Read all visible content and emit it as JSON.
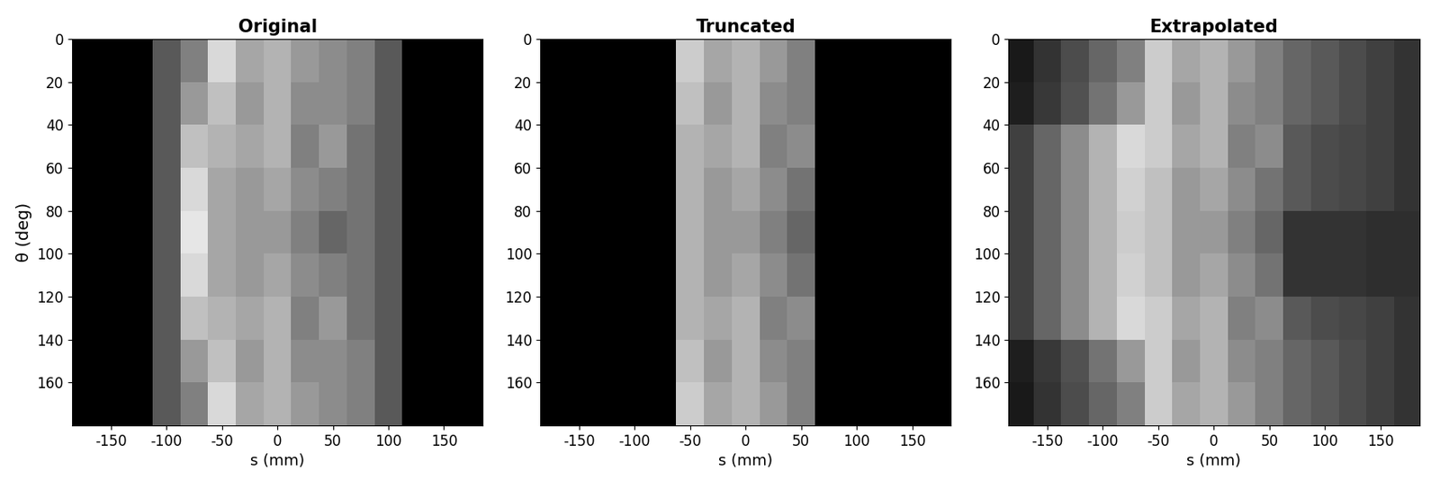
{
  "chart_data": [
    {
      "type": "heatmap",
      "title": "Original",
      "xlabel": "s (mm)",
      "ylabel": "θ (deg)",
      "color": "gray",
      "color_range": [
        0,
        1
      ],
      "xlim": [
        -185,
        185
      ],
      "ylim": [
        180,
        0
      ],
      "xticks": [
        -150,
        -100,
        -50,
        0,
        50,
        100,
        150
      ],
      "yticks": [
        0,
        20,
        40,
        60,
        80,
        100,
        120,
        140,
        160
      ],
      "x": [
        -175,
        -150,
        -125,
        -100,
        -75,
        -50,
        -25,
        0,
        25,
        50,
        75,
        100,
        125,
        150,
        175
      ],
      "y": [
        10,
        30,
        50,
        70,
        90,
        110,
        130,
        150,
        170
      ],
      "cells": [
        [
          0,
          0,
          0,
          0.35,
          0.5,
          0.85,
          0.65,
          0.7,
          0.6,
          0.55,
          0.5,
          0.35,
          0,
          0,
          0
        ],
        [
          0,
          0,
          0,
          0.35,
          0.6,
          0.75,
          0.6,
          0.7,
          0.55,
          0.55,
          0.5,
          0.35,
          0,
          0,
          0
        ],
        [
          0,
          0,
          0,
          0.35,
          0.75,
          0.7,
          0.65,
          0.7,
          0.5,
          0.6,
          0.45,
          0.35,
          0,
          0,
          0
        ],
        [
          0,
          0,
          0,
          0.35,
          0.85,
          0.65,
          0.6,
          0.65,
          0.55,
          0.5,
          0.45,
          0.35,
          0,
          0,
          0
        ],
        [
          0,
          0,
          0,
          0.35,
          0.9,
          0.65,
          0.6,
          0.6,
          0.5,
          0.4,
          0.45,
          0.35,
          0,
          0,
          0
        ],
        [
          0,
          0,
          0,
          0.35,
          0.85,
          0.65,
          0.6,
          0.65,
          0.55,
          0.5,
          0.45,
          0.35,
          0,
          0,
          0
        ],
        [
          0,
          0,
          0,
          0.35,
          0.75,
          0.7,
          0.65,
          0.7,
          0.5,
          0.6,
          0.45,
          0.35,
          0,
          0,
          0
        ],
        [
          0,
          0,
          0,
          0.35,
          0.6,
          0.75,
          0.6,
          0.7,
          0.55,
          0.55,
          0.5,
          0.35,
          0,
          0,
          0
        ],
        [
          0,
          0,
          0,
          0.35,
          0.5,
          0.85,
          0.65,
          0.7,
          0.6,
          0.55,
          0.5,
          0.35,
          0,
          0,
          0
        ]
      ]
    },
    {
      "type": "heatmap",
      "title": "Truncated",
      "xlabel": "s (mm)",
      "color": "gray",
      "color_range": [
        0,
        1
      ],
      "xlim": [
        -185,
        185
      ],
      "ylim": [
        180,
        0
      ],
      "xticks": [
        -150,
        -100,
        -50,
        0,
        50,
        100,
        150
      ],
      "yticks": [
        0,
        20,
        40,
        60,
        80,
        100,
        120,
        140,
        160
      ],
      "x": [
        -175,
        -150,
        -125,
        -100,
        -75,
        -50,
        -25,
        0,
        25,
        50,
        75,
        100,
        125,
        150,
        175
      ],
      "y": [
        10,
        30,
        50,
        70,
        90,
        110,
        130,
        150,
        170
      ],
      "cells": [
        [
          0,
          0,
          0,
          0,
          0,
          0.8,
          0.65,
          0.7,
          0.6,
          0.5,
          0,
          0,
          0,
          0,
          0
        ],
        [
          0,
          0,
          0,
          0,
          0,
          0.75,
          0.6,
          0.7,
          0.55,
          0.5,
          0,
          0,
          0,
          0,
          0
        ],
        [
          0,
          0,
          0,
          0,
          0,
          0.7,
          0.65,
          0.7,
          0.5,
          0.55,
          0,
          0,
          0,
          0,
          0
        ],
        [
          0,
          0,
          0,
          0,
          0,
          0.7,
          0.6,
          0.65,
          0.55,
          0.45,
          0,
          0,
          0,
          0,
          0
        ],
        [
          0,
          0,
          0,
          0,
          0,
          0.7,
          0.6,
          0.6,
          0.5,
          0.4,
          0,
          0,
          0,
          0,
          0
        ],
        [
          0,
          0,
          0,
          0,
          0,
          0.7,
          0.6,
          0.65,
          0.55,
          0.45,
          0,
          0,
          0,
          0,
          0
        ],
        [
          0,
          0,
          0,
          0,
          0,
          0.7,
          0.65,
          0.7,
          0.5,
          0.55,
          0,
          0,
          0,
          0,
          0
        ],
        [
          0,
          0,
          0,
          0,
          0,
          0.75,
          0.6,
          0.7,
          0.55,
          0.5,
          0,
          0,
          0,
          0,
          0
        ],
        [
          0,
          0,
          0,
          0,
          0,
          0.8,
          0.65,
          0.7,
          0.6,
          0.5,
          0,
          0,
          0,
          0,
          0
        ]
      ]
    },
    {
      "type": "heatmap",
      "title": "Extrapolated",
      "xlabel": "s (mm)",
      "color": "gray",
      "color_range": [
        0,
        1
      ],
      "xlim": [
        -185,
        185
      ],
      "ylim": [
        180,
        0
      ],
      "xticks": [
        -150,
        -100,
        -50,
        0,
        50,
        100,
        150
      ],
      "yticks": [
        0,
        20,
        40,
        60,
        80,
        100,
        120,
        140,
        160
      ],
      "x": [
        -175,
        -150,
        -125,
        -100,
        -75,
        -50,
        -25,
        0,
        25,
        50,
        75,
        100,
        125,
        150,
        175
      ],
      "y": [
        10,
        30,
        50,
        70,
        90,
        110,
        130,
        150,
        170
      ],
      "cells": [
        [
          0.1,
          0.2,
          0.3,
          0.4,
          0.5,
          0.8,
          0.65,
          0.7,
          0.6,
          0.5,
          0.4,
          0.35,
          0.3,
          0.25,
          0.2
        ],
        [
          0.12,
          0.22,
          0.32,
          0.45,
          0.6,
          0.8,
          0.6,
          0.7,
          0.55,
          0.5,
          0.4,
          0.35,
          0.3,
          0.25,
          0.2
        ],
        [
          0.25,
          0.4,
          0.55,
          0.7,
          0.85,
          0.8,
          0.65,
          0.7,
          0.5,
          0.55,
          0.35,
          0.3,
          0.28,
          0.25,
          0.2
        ],
        [
          0.25,
          0.4,
          0.55,
          0.7,
          0.82,
          0.75,
          0.6,
          0.65,
          0.55,
          0.45,
          0.35,
          0.3,
          0.28,
          0.25,
          0.2
        ],
        [
          0.25,
          0.4,
          0.55,
          0.7,
          0.8,
          0.75,
          0.6,
          0.6,
          0.5,
          0.4,
          0.2,
          0.2,
          0.2,
          0.18,
          0.18
        ],
        [
          0.25,
          0.4,
          0.55,
          0.7,
          0.82,
          0.75,
          0.6,
          0.65,
          0.55,
          0.45,
          0.2,
          0.2,
          0.2,
          0.18,
          0.18
        ],
        [
          0.25,
          0.4,
          0.55,
          0.7,
          0.85,
          0.8,
          0.65,
          0.7,
          0.5,
          0.55,
          0.35,
          0.3,
          0.28,
          0.25,
          0.2
        ],
        [
          0.12,
          0.22,
          0.32,
          0.45,
          0.6,
          0.8,
          0.6,
          0.7,
          0.55,
          0.5,
          0.4,
          0.35,
          0.3,
          0.25,
          0.2
        ],
        [
          0.1,
          0.2,
          0.3,
          0.4,
          0.5,
          0.8,
          0.65,
          0.7,
          0.6,
          0.5,
          0.4,
          0.35,
          0.3,
          0.25,
          0.2
        ]
      ]
    }
  ]
}
